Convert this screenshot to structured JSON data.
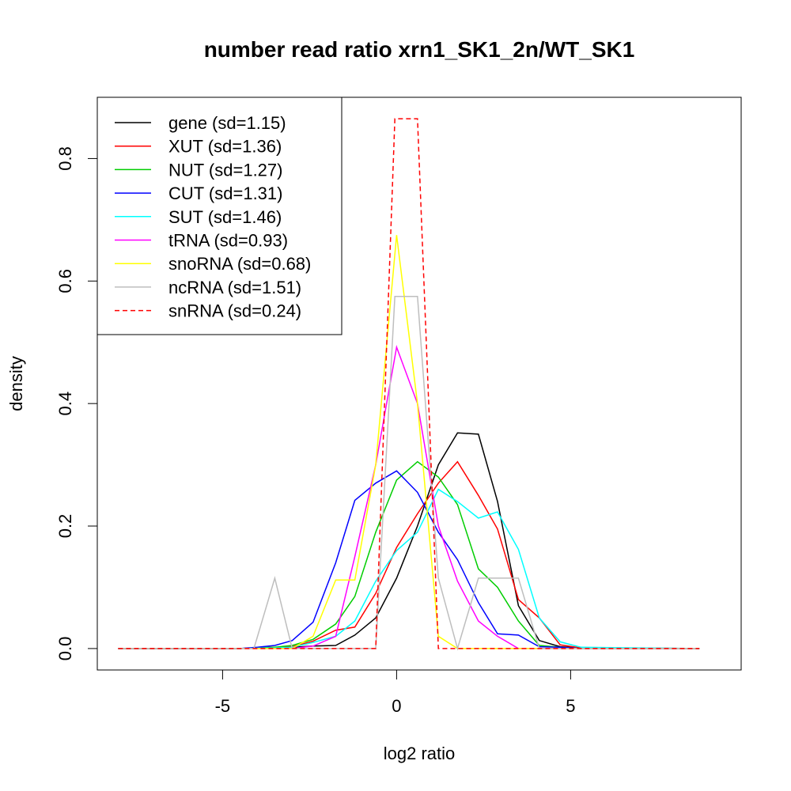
{
  "chart_data": {
    "type": "line",
    "title": "number read ratio xrn1_SK1_2n/WT_SK1",
    "xlabel": "log2 ratio",
    "ylabel": "density",
    "xlim": [
      -8.6,
      9.9
    ],
    "ylim": [
      -0.035,
      0.9
    ],
    "x_ticks": [
      -5,
      0,
      5
    ],
    "x_tick_labels": [
      "-5",
      "0",
      "5"
    ],
    "y_ticks": [
      0.0,
      0.2,
      0.4,
      0.6,
      0.8
    ],
    "y_tick_labels": [
      "0.0",
      "0.2",
      "0.4",
      "0.6",
      "0.8"
    ],
    "legend_position": "top-left",
    "grid": false,
    "series": [
      {
        "name": "gene (sd=1.15)",
        "color": "#000000",
        "dash": false,
        "x": [
          -8.0,
          -4.5,
          -4.0,
          -3.5,
          -3.0,
          -2.4,
          -1.75,
          -1.2,
          -0.6,
          0.0,
          0.6,
          1.2,
          1.75,
          2.35,
          2.9,
          3.5,
          4.1,
          4.7,
          5.3,
          8.7
        ],
        "y": [
          0.0,
          0.0,
          0.001,
          0.002,
          0.002,
          0.004,
          0.005,
          0.022,
          0.05,
          0.115,
          0.2,
          0.3,
          0.352,
          0.35,
          0.24,
          0.07,
          0.013,
          0.003,
          0.001,
          0.0
        ]
      },
      {
        "name": "XUT (sd=1.36)",
        "color": "#ff0000",
        "dash": false,
        "x": [
          -8.0,
          -4.5,
          -3.5,
          -3.0,
          -2.4,
          -1.75,
          -1.2,
          -0.6,
          0.0,
          0.6,
          1.2,
          1.75,
          2.35,
          2.9,
          3.5,
          4.1,
          4.7,
          5.3,
          8.7
        ],
        "y": [
          0.0,
          0.0,
          0.002,
          0.003,
          0.012,
          0.03,
          0.035,
          0.09,
          0.165,
          0.22,
          0.27,
          0.305,
          0.25,
          0.195,
          0.08,
          0.05,
          0.006,
          0.001,
          0.0
        ]
      },
      {
        "name": "NUT (sd=1.27)",
        "color": "#00cd00",
        "dash": false,
        "x": [
          -8.0,
          -4.5,
          -3.5,
          -3.0,
          -2.4,
          -1.75,
          -1.2,
          -0.6,
          0.0,
          0.6,
          1.2,
          1.75,
          2.35,
          2.9,
          3.5,
          4.1,
          4.7,
          5.3,
          8.7
        ],
        "y": [
          0.0,
          0.0,
          0.002,
          0.005,
          0.015,
          0.04,
          0.085,
          0.19,
          0.275,
          0.305,
          0.28,
          0.235,
          0.13,
          0.1,
          0.045,
          0.005,
          0.002,
          0.0,
          0.0
        ]
      },
      {
        "name": "CUT (sd=1.31)",
        "color": "#0000ff",
        "dash": false,
        "x": [
          -8.0,
          -4.5,
          -4.0,
          -3.5,
          -3.0,
          -2.4,
          -1.75,
          -1.2,
          -0.6,
          0.0,
          0.6,
          1.2,
          1.75,
          2.35,
          2.9,
          3.5,
          4.1,
          4.7,
          5.3,
          8.7
        ],
        "y": [
          0.0,
          0.0,
          0.002,
          0.005,
          0.013,
          0.043,
          0.14,
          0.242,
          0.27,
          0.29,
          0.255,
          0.19,
          0.145,
          0.075,
          0.024,
          0.022,
          0.003,
          0.002,
          0.0,
          0.0
        ]
      },
      {
        "name": "SUT (sd=1.46)",
        "color": "#00ffff",
        "dash": false,
        "x": [
          -8.0,
          -4.5,
          -3.5,
          -3.0,
          -2.4,
          -1.75,
          -1.2,
          -0.6,
          0.0,
          0.6,
          1.2,
          1.75,
          2.35,
          2.9,
          3.5,
          4.1,
          4.7,
          5.3,
          8.7
        ],
        "y": [
          0.0,
          0.0,
          0.001,
          0.002,
          0.01,
          0.02,
          0.045,
          0.11,
          0.16,
          0.19,
          0.26,
          0.24,
          0.213,
          0.223,
          0.162,
          0.05,
          0.011,
          0.002,
          0.0
        ]
      },
      {
        "name": "tRNA (sd=0.93)",
        "color": "#ff00ff",
        "dash": false,
        "x": [
          -8.0,
          -3.0,
          -2.4,
          -1.75,
          -1.2,
          -0.6,
          0.0,
          0.6,
          1.2,
          1.75,
          2.35,
          2.9,
          3.5,
          4.1,
          4.7,
          8.7
        ],
        "y": [
          0.0,
          0.0,
          0.004,
          0.02,
          0.15,
          0.3,
          0.492,
          0.4,
          0.2,
          0.11,
          0.045,
          0.02,
          0.0,
          0.0,
          0.0,
          0.0
        ]
      },
      {
        "name": "snoRNA (sd=0.68)",
        "color": "#ffff00",
        "dash": false,
        "x": [
          -8.0,
          -3.0,
          -2.4,
          -1.75,
          -1.2,
          -0.6,
          0.0,
          0.6,
          1.2,
          1.75,
          2.35,
          2.9,
          8.7
        ],
        "y": [
          0.0,
          0.0,
          0.02,
          0.112,
          0.112,
          0.3,
          0.675,
          0.4,
          0.02,
          0.0,
          0.0,
          0.0,
          0.0
        ]
      },
      {
        "name": "ncRNA (sd=1.51)",
        "color": "#bebebe",
        "dash": false,
        "x": [
          -8.0,
          -4.1,
          -3.5,
          -3.0,
          -0.6,
          -0.05,
          0.6,
          1.2,
          1.75,
          2.35,
          2.9,
          3.5,
          4.1,
          8.7
        ],
        "y": [
          0.0,
          0.0,
          0.115,
          0.0,
          0.0,
          0.575,
          0.575,
          0.115,
          0.0,
          0.115,
          0.115,
          0.115,
          0.0,
          0.0
        ]
      },
      {
        "name": "snRNA (sd=0.24)",
        "color": "#ff0000",
        "dash": true,
        "x": [
          -8.0,
          -0.6,
          -0.05,
          0.6,
          1.2,
          8.7
        ],
        "y": [
          0.0,
          0.0,
          0.865,
          0.865,
          0.0,
          0.0
        ]
      }
    ]
  }
}
